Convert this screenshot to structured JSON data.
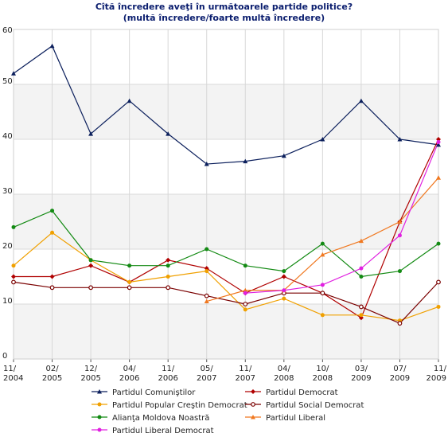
{
  "chart_data": {
    "type": "line",
    "title": "Cîtă încredere aveţi în următoarele partide politice?",
    "subtitle": "(multă încredere/foarte multă încredere)",
    "x_labels": [
      [
        "11/",
        "2004"
      ],
      [
        "02/",
        "2005"
      ],
      [
        "12/",
        "2005"
      ],
      [
        "04/",
        "2006"
      ],
      [
        "11/",
        "2006"
      ],
      [
        "05/",
        "2007"
      ],
      [
        "11/",
        "2007"
      ],
      [
        "04/",
        "2008"
      ],
      [
        "10/",
        "2008"
      ],
      [
        "03/",
        "2009"
      ],
      [
        "07/",
        "2009"
      ],
      [
        "11/",
        "2009"
      ]
    ],
    "ylim": [
      0,
      60
    ],
    "yticks": [
      0,
      10,
      20,
      30,
      40,
      50,
      60
    ],
    "grid": true,
    "legend_position": "bottom",
    "series": [
      {
        "name": "Partidul Comuniştilor",
        "color": "#0b1f5c",
        "marker": "triangle",
        "values": [
          52,
          57,
          41,
          47,
          41,
          35.5,
          36,
          37,
          40,
          47,
          40,
          39
        ]
      },
      {
        "name": "Partidul Democrat",
        "color": "#b00000",
        "marker": "diamond",
        "values": [
          15,
          15,
          17,
          14,
          18,
          16.5,
          12,
          15,
          12,
          7.5,
          25,
          40
        ]
      },
      {
        "name": "Partidul Popular Creştin Democrat",
        "color": "#f0a000",
        "marker": "circle",
        "values": [
          17,
          23,
          18,
          14,
          15,
          16,
          9,
          11,
          8,
          8,
          7,
          9.5
        ]
      },
      {
        "name": "Partidul Social Democrat",
        "color": "#7a0000",
        "marker": "circle-open",
        "values": [
          14,
          13,
          13,
          13,
          13,
          11.5,
          10,
          12,
          12,
          9.5,
          6.5,
          14
        ]
      },
      {
        "name": "Alianţa Moldova Noastră",
        "color": "#138a13",
        "marker": "circle",
        "values": [
          24,
          27,
          18,
          17,
          17,
          20,
          17,
          16,
          21,
          15,
          16,
          21
        ]
      },
      {
        "name": "Partidul Liberal",
        "color": "#f07820",
        "marker": "triangle",
        "values": [
          null,
          null,
          null,
          null,
          null,
          10.5,
          12.5,
          12.5,
          19,
          21.5,
          25,
          33
        ]
      },
      {
        "name": "Partidul Liberal Democrat",
        "color": "#e020e0",
        "marker": "circle",
        "values": [
          null,
          null,
          null,
          null,
          null,
          null,
          12,
          12.5,
          13.5,
          16.5,
          22.5,
          39.5
        ]
      }
    ]
  }
}
